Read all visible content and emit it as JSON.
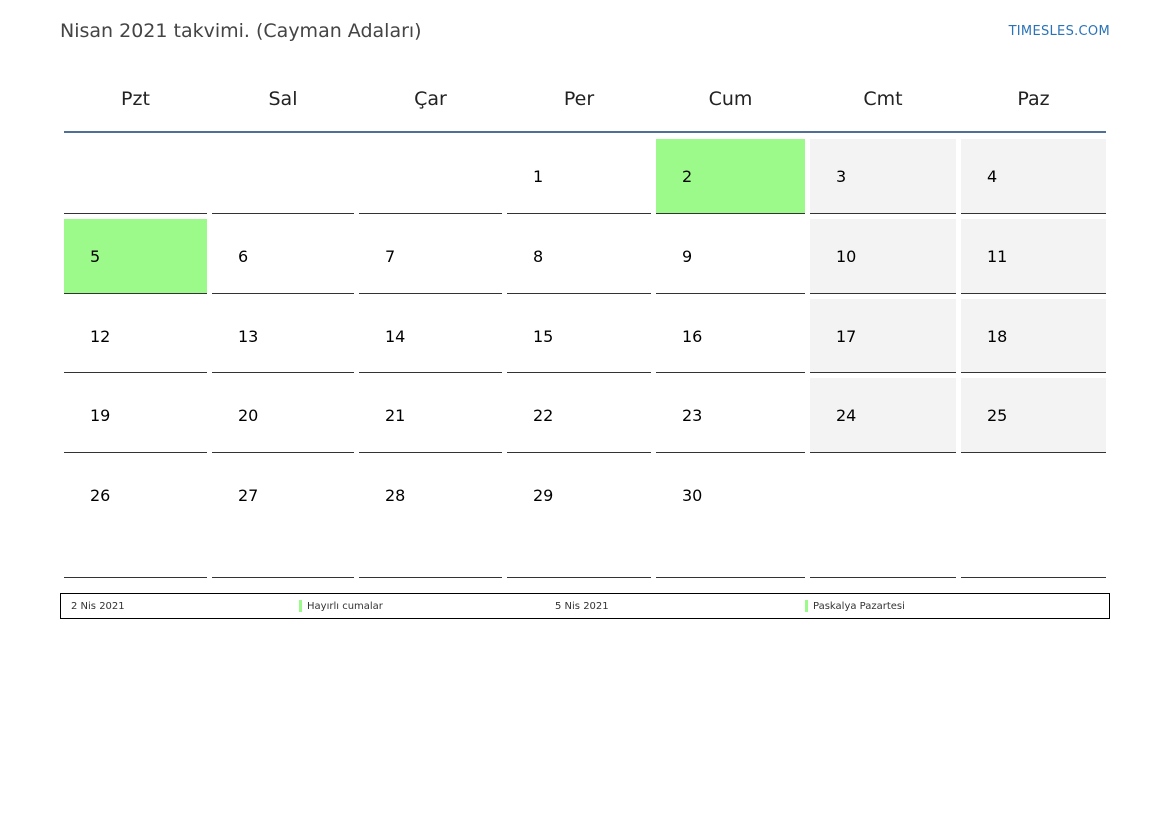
{
  "title": "Nisan 2021 takvimi. (Cayman Adaları)",
  "site": "TIMESLES.COM",
  "colors": {
    "holiday": "#9cfa8a",
    "weekend": "#f3f3f3",
    "header_line": "#4f6f96"
  },
  "weekdays": [
    "Pzt",
    "Sal",
    "Çar",
    "Per",
    "Cum",
    "Cmt",
    "Paz"
  ],
  "weeks": [
    [
      "",
      "",
      "",
      "1",
      "2",
      "3",
      "4"
    ],
    [
      "5",
      "6",
      "7",
      "8",
      "9",
      "10",
      "11"
    ],
    [
      "12",
      "13",
      "14",
      "15",
      "16",
      "17",
      "18"
    ],
    [
      "19",
      "20",
      "21",
      "22",
      "23",
      "24",
      "25"
    ],
    [
      "26",
      "27",
      "28",
      "29",
      "30",
      "",
      ""
    ]
  ],
  "holidays": [
    "2",
    "5"
  ],
  "legend": [
    {
      "date": "2 Nis 2021",
      "name": "Hayırlı cumalar"
    },
    {
      "date": "5 Nis 2021",
      "name": "Paskalya Pazartesi"
    }
  ]
}
